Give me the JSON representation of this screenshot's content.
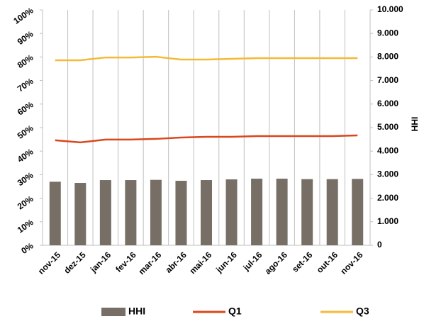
{
  "chart_data": {
    "type": "bar-line",
    "categories": [
      "nov-15",
      "dez-15",
      "jan-16",
      "fev-16",
      "mar-16",
      "abr-16",
      "mai-16",
      "jun-16",
      "jul-16",
      "ago-16",
      "set-16",
      "out-16",
      "nov-16"
    ],
    "series": [
      {
        "name": "HHI",
        "type": "bar",
        "axis": "y2",
        "color": "#776f66",
        "values": [
          2700,
          2650,
          2770,
          2770,
          2780,
          2740,
          2770,
          2800,
          2830,
          2830,
          2810,
          2810,
          2820
        ]
      },
      {
        "name": "Q1",
        "type": "line",
        "axis": "y",
        "color": "#d9471d",
        "values": [
          44.6,
          43.7,
          44.9,
          44.9,
          45.2,
          45.8,
          46.1,
          46.1,
          46.4,
          46.4,
          46.4,
          46.4,
          46.7
        ]
      },
      {
        "name": "Q3",
        "type": "line",
        "axis": "y",
        "color": "#f5b937",
        "values": [
          78.6,
          78.6,
          79.8,
          79.8,
          80.1,
          78.9,
          78.9,
          79.2,
          79.5,
          79.5,
          79.5,
          79.5,
          79.5
        ]
      }
    ],
    "ylim": [
      0,
      100
    ],
    "yticks": [
      {
        "value": 0,
        "label": "0%"
      },
      {
        "value": 10,
        "label": "10%"
      },
      {
        "value": 20,
        "label": "20%"
      },
      {
        "value": 30,
        "label": "30%"
      },
      {
        "value": 40,
        "label": "40%"
      },
      {
        "value": 50,
        "label": "50%"
      },
      {
        "value": 60,
        "label": "60%"
      },
      {
        "value": 70,
        "label": "70%"
      },
      {
        "value": 80,
        "label": "80%"
      },
      {
        "value": 90,
        "label": "90%"
      },
      {
        "value": 100,
        "label": "100%"
      }
    ],
    "y2lim": [
      0,
      10000
    ],
    "y2ticks": [
      0,
      {
        "value": 1000,
        "label": "1.000"
      },
      {
        "value": 2000,
        "label": "2.000"
      },
      {
        "value": 3000,
        "label": "3.000"
      },
      {
        "value": 4000,
        "label": "4.000"
      },
      {
        "value": 5000,
        "label": "5.000"
      },
      {
        "value": 6000,
        "label": "6.000"
      },
      {
        "value": 7000,
        "label": "7.000"
      },
      {
        "value": 8000,
        "label": "8.000"
      },
      {
        "value": 9000,
        "label": "9.000"
      },
      {
        "value": 10000,
        "label": "10.000"
      }
    ],
    "y2label": "HHI",
    "grid": "x",
    "legend": "bottom"
  }
}
